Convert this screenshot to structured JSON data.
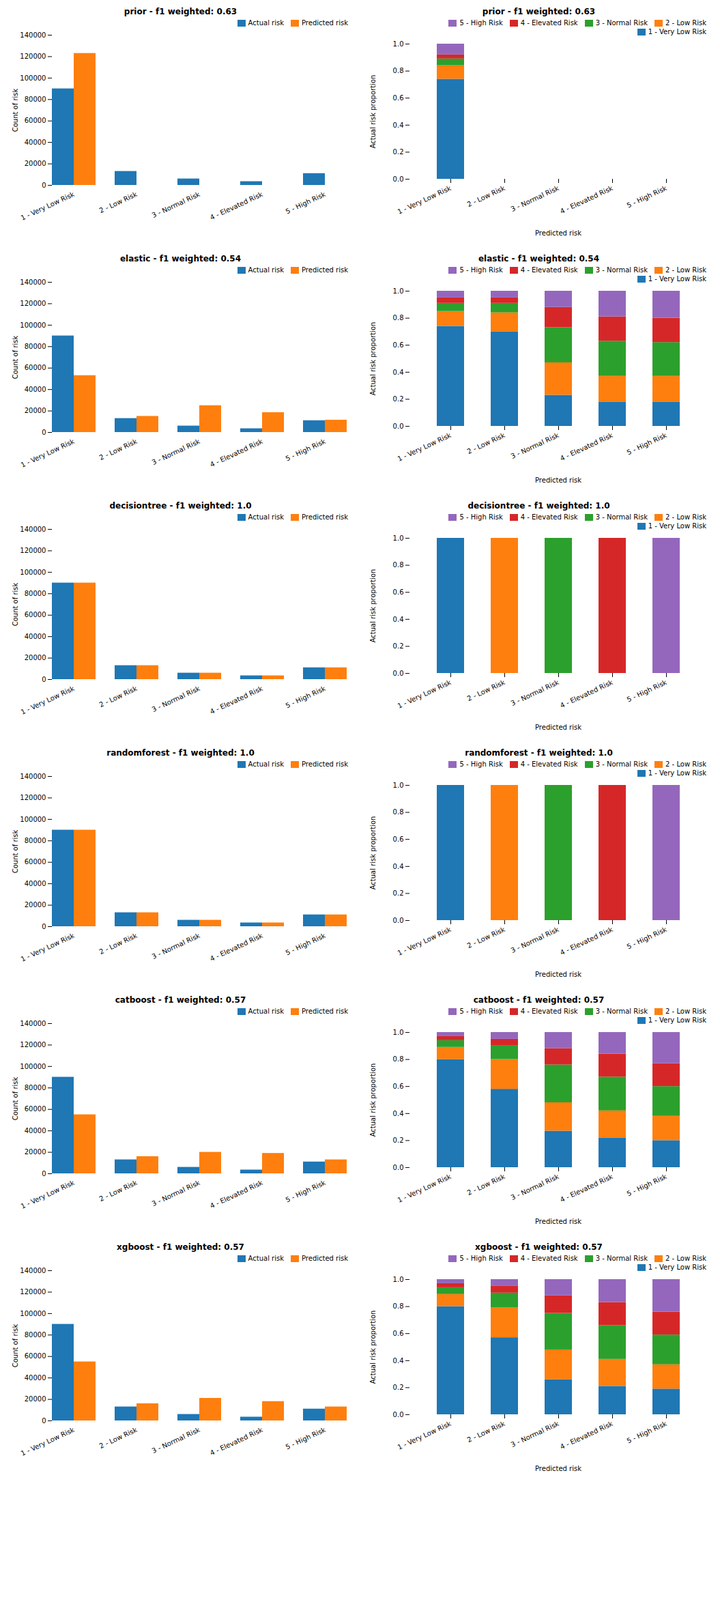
{
  "chart_data": [
    {
      "type": "bar",
      "title": "prior - f1 weighted: 0.63",
      "ylabel": "Count of risk",
      "categories": [
        "1 - Very Low Risk",
        "2 - Low Risk",
        "3 - Normal Risk",
        "4 - Elevated Risk",
        "5 - High Risk"
      ],
      "series": [
        {
          "name": "Actual risk",
          "color": "#1f77b4",
          "values": [
            90000,
            13000,
            6000,
            3500,
            11000
          ]
        },
        {
          "name": "Predicted risk",
          "color": "#ff7f0e",
          "values": [
            123000,
            0,
            0,
            0,
            0
          ]
        }
      ],
      "ylim": [
        0,
        140000
      ],
      "yticks": [
        0,
        20000,
        40000,
        60000,
        80000,
        100000,
        120000,
        140000
      ],
      "grid": false,
      "legend": "upper right"
    },
    {
      "type": "bar",
      "stacked": true,
      "title": "prior - f1 weighted: 0.63",
      "xlabel": "Predicted risk",
      "ylabel": "Actual risk proportion",
      "categories": [
        "1 - Very Low Risk",
        "2 - Low Risk",
        "3 - Normal Risk",
        "4 - Elevated Risk",
        "5 - High Risk"
      ],
      "series": [
        {
          "name": "1 - Very Low Risk",
          "color": "#1f77b4",
          "values": [
            0.74,
            0.0,
            0.0,
            0.0,
            0.0
          ]
        },
        {
          "name": "2 - Low Risk",
          "color": "#ff7f0e",
          "values": [
            0.1,
            0.0,
            0.0,
            0.0,
            0.0
          ]
        },
        {
          "name": "3 - Normal Risk",
          "color": "#2ca02c",
          "values": [
            0.05,
            0.0,
            0.0,
            0.0,
            0.0
          ]
        },
        {
          "name": "4 - Elevated Risk",
          "color": "#d62728",
          "values": [
            0.03,
            0.0,
            0.0,
            0.0,
            0.0
          ]
        },
        {
          "name": "5 - High Risk",
          "color": "#9467bd",
          "values": [
            0.08,
            0.0,
            0.0,
            0.0,
            0.0
          ]
        }
      ],
      "ylim": [
        0,
        1.0
      ],
      "yticks": [
        {
          "value": 0,
          "label": "0.0"
        },
        {
          "value": 0.2,
          "label": "0.2"
        },
        {
          "value": 0.4,
          "label": "0.4"
        },
        {
          "value": 0.6,
          "label": "0.6"
        },
        {
          "value": 0.8,
          "label": "0.8"
        },
        {
          "value": 1.0,
          "label": "1.0"
        }
      ],
      "grid": false,
      "legend": "upper right"
    },
    {
      "type": "bar",
      "title": "elastic - f1 weighted: 0.54",
      "ylabel": "Count of risk",
      "categories": [
        "1 - Very Low Risk",
        "2 - Low Risk",
        "3 - Normal Risk",
        "4 - Elevated Risk",
        "5 - High Risk"
      ],
      "series": [
        {
          "name": "Actual risk",
          "color": "#1f77b4",
          "values": [
            90000,
            13000,
            6000,
            3500,
            11000
          ]
        },
        {
          "name": "Predicted risk",
          "color": "#ff7f0e",
          "values": [
            53000,
            15000,
            25000,
            18500,
            11500
          ]
        }
      ],
      "ylim": [
        0,
        140000
      ],
      "yticks": [
        0,
        20000,
        40000,
        60000,
        80000,
        100000,
        120000,
        140000
      ],
      "grid": false,
      "legend": "upper right"
    },
    {
      "type": "bar",
      "stacked": true,
      "title": "elastic - f1 weighted: 0.54",
      "xlabel": "Predicted risk",
      "ylabel": "Actual risk proportion",
      "categories": [
        "1 - Very Low Risk",
        "2 - Low Risk",
        "3 - Normal Risk",
        "4 - Elevated Risk",
        "5 - High Risk"
      ],
      "series": [
        {
          "name": "1 - Very Low Risk",
          "color": "#1f77b4",
          "values": [
            0.74,
            0.7,
            0.23,
            0.18,
            0.18
          ]
        },
        {
          "name": "2 - Low Risk",
          "color": "#ff7f0e",
          "values": [
            0.11,
            0.14,
            0.24,
            0.19,
            0.19
          ]
        },
        {
          "name": "3 - Normal Risk",
          "color": "#2ca02c",
          "values": [
            0.06,
            0.07,
            0.26,
            0.26,
            0.25
          ]
        },
        {
          "name": "4 - Elevated Risk",
          "color": "#d62728",
          "values": [
            0.04,
            0.04,
            0.15,
            0.18,
            0.18
          ]
        },
        {
          "name": "5 - High Risk",
          "color": "#9467bd",
          "values": [
            0.05,
            0.05,
            0.12,
            0.19,
            0.2
          ]
        }
      ],
      "ylim": [
        0,
        1.0
      ],
      "yticks": [
        {
          "value": 0,
          "label": "0.0"
        },
        {
          "value": 0.2,
          "label": "0.2"
        },
        {
          "value": 0.4,
          "label": "0.4"
        },
        {
          "value": 0.6,
          "label": "0.6"
        },
        {
          "value": 0.8,
          "label": "0.8"
        },
        {
          "value": 1.0,
          "label": "1.0"
        }
      ],
      "grid": false,
      "legend": "upper right"
    },
    {
      "type": "bar",
      "title": "decisiontree - f1 weighted: 1.0",
      "ylabel": "Count of risk",
      "categories": [
        "1 - Very Low Risk",
        "2 - Low Risk",
        "3 - Normal Risk",
        "4 - Elevated Risk",
        "5 - High Risk"
      ],
      "series": [
        {
          "name": "Actual risk",
          "color": "#1f77b4",
          "values": [
            90000,
            13000,
            6000,
            3500,
            11000
          ]
        },
        {
          "name": "Predicted risk",
          "color": "#ff7f0e",
          "values": [
            90000,
            13000,
            6000,
            3500,
            11000
          ]
        }
      ],
      "ylim": [
        0,
        140000
      ],
      "yticks": [
        0,
        20000,
        40000,
        60000,
        80000,
        100000,
        120000,
        140000
      ],
      "grid": false,
      "legend": "upper right"
    },
    {
      "type": "bar",
      "stacked": true,
      "title": "decisiontree - f1 weighted: 1.0",
      "xlabel": "Predicted risk",
      "ylabel": "Actual risk proportion",
      "categories": [
        "1 - Very Low Risk",
        "2 - Low Risk",
        "3 - Normal Risk",
        "4 - Elevated Risk",
        "5 - High Risk"
      ],
      "series": [
        {
          "name": "1 - Very Low Risk",
          "color": "#1f77b4",
          "values": [
            1.0,
            0.0,
            0.0,
            0.0,
            0.0
          ]
        },
        {
          "name": "2 - Low Risk",
          "color": "#ff7f0e",
          "values": [
            0.0,
            1.0,
            0.0,
            0.0,
            0.0
          ]
        },
        {
          "name": "3 - Normal Risk",
          "color": "#2ca02c",
          "values": [
            0.0,
            0.0,
            1.0,
            0.0,
            0.0
          ]
        },
        {
          "name": "4 - Elevated Risk",
          "color": "#d62728",
          "values": [
            0.0,
            0.0,
            0.0,
            1.0,
            0.0
          ]
        },
        {
          "name": "5 - High Risk",
          "color": "#9467bd",
          "values": [
            0.0,
            0.0,
            0.0,
            0.0,
            1.0
          ]
        }
      ],
      "ylim": [
        0,
        1.0
      ],
      "yticks": [
        {
          "value": 0,
          "label": "0.0"
        },
        {
          "value": 0.2,
          "label": "0.2"
        },
        {
          "value": 0.4,
          "label": "0.4"
        },
        {
          "value": 0.6,
          "label": "0.6"
        },
        {
          "value": 0.8,
          "label": "0.8"
        },
        {
          "value": 1.0,
          "label": "1.0"
        }
      ],
      "grid": false,
      "legend": "upper right"
    },
    {
      "type": "bar",
      "title": "randomforest - f1 weighted: 1.0",
      "ylabel": "Count of risk",
      "categories": [
        "1 - Very Low Risk",
        "2 - Low Risk",
        "3 - Normal Risk",
        "4 - Elevated Risk",
        "5 - High Risk"
      ],
      "series": [
        {
          "name": "Actual risk",
          "color": "#1f77b4",
          "values": [
            90000,
            13000,
            6000,
            3500,
            11000
          ]
        },
        {
          "name": "Predicted risk",
          "color": "#ff7f0e",
          "values": [
            90000,
            13000,
            6000,
            3500,
            11000
          ]
        }
      ],
      "ylim": [
        0,
        140000
      ],
      "yticks": [
        0,
        20000,
        40000,
        60000,
        80000,
        100000,
        120000,
        140000
      ],
      "grid": false,
      "legend": "upper right"
    },
    {
      "type": "bar",
      "stacked": true,
      "title": "randomforest - f1 weighted: 1.0",
      "xlabel": "Predicted risk",
      "ylabel": "Actual risk proportion",
      "categories": [
        "1 - Very Low Risk",
        "2 - Low Risk",
        "3 - Normal Risk",
        "4 - Elevated Risk",
        "5 - High Risk"
      ],
      "series": [
        {
          "name": "1 - Very Low Risk",
          "color": "#1f77b4",
          "values": [
            1.0,
            0.0,
            0.0,
            0.0,
            0.0
          ]
        },
        {
          "name": "2 - Low Risk",
          "color": "#ff7f0e",
          "values": [
            0.0,
            1.0,
            0.0,
            0.0,
            0.0
          ]
        },
        {
          "name": "3 - Normal Risk",
          "color": "#2ca02c",
          "values": [
            0.0,
            0.0,
            1.0,
            0.0,
            0.0
          ]
        },
        {
          "name": "4 - Elevated Risk",
          "color": "#d62728",
          "values": [
            0.0,
            0.0,
            0.0,
            1.0,
            0.0
          ]
        },
        {
          "name": "5 - High Risk",
          "color": "#9467bd",
          "values": [
            0.0,
            0.0,
            0.0,
            0.0,
            1.0
          ]
        }
      ],
      "ylim": [
        0,
        1.0
      ],
      "yticks": [
        {
          "value": 0,
          "label": "0.0"
        },
        {
          "value": 0.2,
          "label": "0.2"
        },
        {
          "value": 0.4,
          "label": "0.4"
        },
        {
          "value": 0.6,
          "label": "0.6"
        },
        {
          "value": 0.8,
          "label": "0.8"
        },
        {
          "value": 1.0,
          "label": "1.0"
        }
      ],
      "grid": false,
      "legend": "upper right"
    },
    {
      "type": "bar",
      "title": "catboost - f1 weighted: 0.57",
      "ylabel": "Count of risk",
      "categories": [
        "1 - Very Low Risk",
        "2 - Low Risk",
        "3 - Normal Risk",
        "4 - Elevated Risk",
        "5 - High Risk"
      ],
      "series": [
        {
          "name": "Actual risk",
          "color": "#1f77b4",
          "values": [
            90000,
            13000,
            6000,
            3500,
            11000
          ]
        },
        {
          "name": "Predicted risk",
          "color": "#ff7f0e",
          "values": [
            55000,
            16000,
            20000,
            19000,
            13000
          ]
        }
      ],
      "ylim": [
        0,
        140000
      ],
      "yticks": [
        0,
        20000,
        40000,
        60000,
        80000,
        100000,
        120000,
        140000
      ],
      "grid": false,
      "legend": "upper right"
    },
    {
      "type": "bar",
      "stacked": true,
      "title": "catboost - f1 weighted: 0.57",
      "xlabel": "Predicted risk",
      "ylabel": "Actual risk proportion",
      "categories": [
        "1 - Very Low Risk",
        "2 - Low Risk",
        "3 - Normal Risk",
        "4 - Elevated Risk",
        "5 - High Risk"
      ],
      "series": [
        {
          "name": "1 - Very Low Risk",
          "color": "#1f77b4",
          "values": [
            0.8,
            0.58,
            0.27,
            0.22,
            0.2
          ]
        },
        {
          "name": "2 - Low Risk",
          "color": "#ff7f0e",
          "values": [
            0.09,
            0.22,
            0.21,
            0.2,
            0.18
          ]
        },
        {
          "name": "3 - Normal Risk",
          "color": "#2ca02c",
          "values": [
            0.05,
            0.1,
            0.28,
            0.25,
            0.22
          ]
        },
        {
          "name": "4 - Elevated Risk",
          "color": "#d62728",
          "values": [
            0.03,
            0.05,
            0.12,
            0.17,
            0.17
          ]
        },
        {
          "name": "5 - High Risk",
          "color": "#9467bd",
          "values": [
            0.03,
            0.05,
            0.12,
            0.16,
            0.23
          ]
        }
      ],
      "ylim": [
        0,
        1.0
      ],
      "yticks": [
        {
          "value": 0,
          "label": "0.0"
        },
        {
          "value": 0.2,
          "label": "0.2"
        },
        {
          "value": 0.4,
          "label": "0.4"
        },
        {
          "value": 0.6,
          "label": "0.6"
        },
        {
          "value": 0.8,
          "label": "0.8"
        },
        {
          "value": 1.0,
          "label": "1.0"
        }
      ],
      "grid": false,
      "legend": "upper right"
    },
    {
      "type": "bar",
      "title": "xgboost - f1 weighted: 0.57",
      "ylabel": "Count of risk",
      "categories": [
        "1 - Very Low Risk",
        "2 - Low Risk",
        "3 - Normal Risk",
        "4 - Elevated Risk",
        "5 - High Risk"
      ],
      "series": [
        {
          "name": "Actual risk",
          "color": "#1f77b4",
          "values": [
            90000,
            13000,
            6000,
            3500,
            11000
          ]
        },
        {
          "name": "Predicted risk",
          "color": "#ff7f0e",
          "values": [
            55000,
            16000,
            21000,
            18000,
            13000
          ]
        }
      ],
      "ylim": [
        0,
        140000
      ],
      "yticks": [
        0,
        20000,
        40000,
        60000,
        80000,
        100000,
        120000,
        140000
      ],
      "grid": false,
      "legend": "upper right"
    },
    {
      "type": "bar",
      "stacked": true,
      "title": "xgboost - f1 weighted: 0.57",
      "xlabel": "Predicted risk",
      "ylabel": "Actual risk proportion",
      "categories": [
        "1 - Very Low Risk",
        "2 - Low Risk",
        "3 - Normal Risk",
        "4 - Elevated Risk",
        "5 - High Risk"
      ],
      "series": [
        {
          "name": "1 - Very Low Risk",
          "color": "#1f77b4",
          "values": [
            0.8,
            0.57,
            0.26,
            0.21,
            0.19
          ]
        },
        {
          "name": "2 - Low Risk",
          "color": "#ff7f0e",
          "values": [
            0.09,
            0.22,
            0.22,
            0.2,
            0.18
          ]
        },
        {
          "name": "3 - Normal Risk",
          "color": "#2ca02c",
          "values": [
            0.05,
            0.11,
            0.27,
            0.25,
            0.22
          ]
        },
        {
          "name": "4 - Elevated Risk",
          "color": "#d62728",
          "values": [
            0.03,
            0.05,
            0.13,
            0.17,
            0.17
          ]
        },
        {
          "name": "5 - High Risk",
          "color": "#9467bd",
          "values": [
            0.03,
            0.05,
            0.12,
            0.17,
            0.24
          ]
        }
      ],
      "ylim": [
        0,
        1.0
      ],
      "yticks": [
        {
          "value": 0,
          "label": "0.0"
        },
        {
          "value": 0.2,
          "label": "0.2"
        },
        {
          "value": 0.4,
          "label": "0.4"
        },
        {
          "value": 0.6,
          "label": "0.6"
        },
        {
          "value": 0.8,
          "label": "0.8"
        },
        {
          "value": 1.0,
          "label": "1.0"
        }
      ],
      "grid": false,
      "legend": "upper right"
    }
  ]
}
